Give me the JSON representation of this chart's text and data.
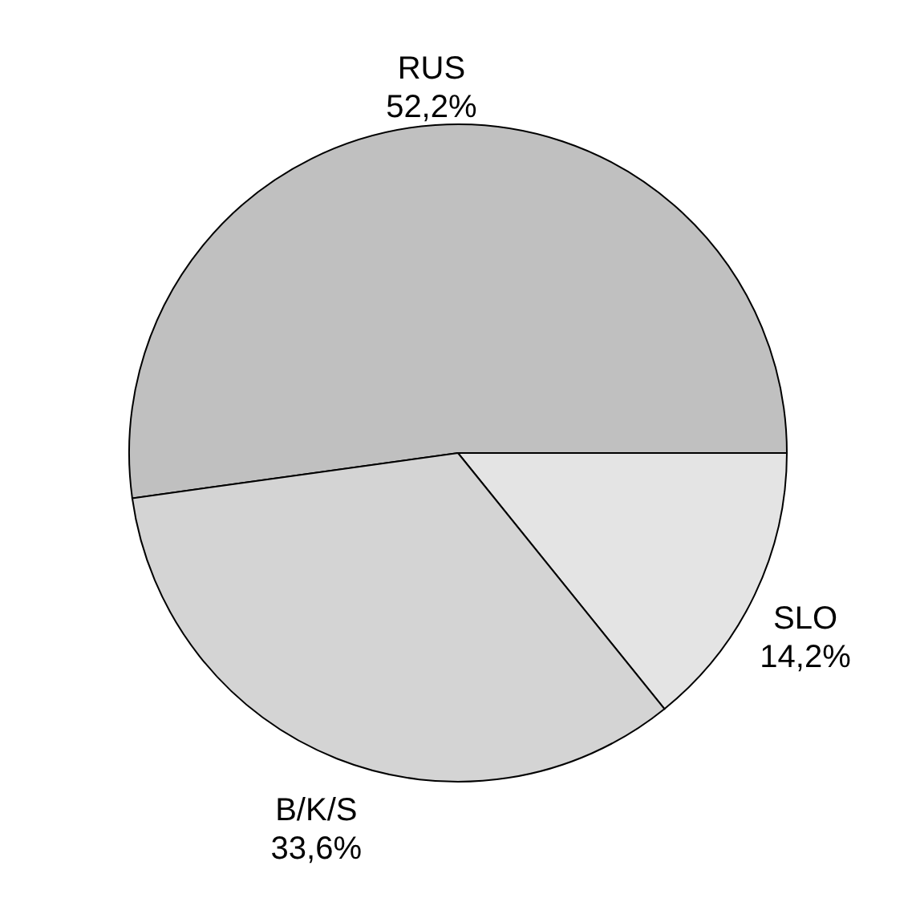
{
  "chart_data": {
    "type": "pie",
    "categories": [
      "RUS",
      "SLO",
      "B/K/S"
    ],
    "values": [
      52.2,
      14.2,
      33.6
    ],
    "value_labels": [
      "52,2%",
      "14,2%",
      "33,6%"
    ],
    "colors": [
      "#c0c0c0",
      "#e4e4e4",
      "#d4d4d4"
    ],
    "legend": false
  }
}
